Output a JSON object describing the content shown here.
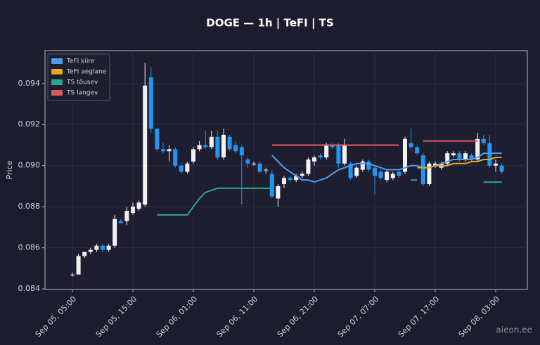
{
  "chart_data": {
    "type": "candlestick",
    "title": "DOGE — 1h  |  TeFI  |  TS",
    "y_label": "Price",
    "watermark": "aieon.ee",
    "up_color": "#f2f2f2",
    "down_color": "#2196f3",
    "grid": true,
    "legend": "upper left",
    "ylim": [
      0.08397,
      0.0956
    ],
    "yticks": [
      0.084,
      0.086,
      0.088,
      {
        "value": 0.09,
        "label": "0.090"
      },
      0.092,
      0.094
    ],
    "xticks": [
      "Sep 05, 05:00",
      "Sep 05, 15:00",
      "Sep 06, 01:00",
      "Sep 06, 11:00",
      "Sep 06, 21:00",
      "Sep 07, 07:00",
      "Sep 07, 17:00",
      "Sep 08, 03:00"
    ],
    "categories": [
      "Sep 05, 05:00",
      "Sep 05, 06:00",
      "Sep 05, 07:00",
      "Sep 05, 08:00",
      "Sep 05, 09:00",
      "Sep 05, 10:00",
      "Sep 05, 11:00",
      "Sep 05, 12:00",
      "Sep 05, 13:00",
      "Sep 05, 14:00",
      "Sep 05, 15:00",
      "Sep 05, 16:00",
      "Sep 05, 17:00",
      "Sep 05, 18:00",
      "Sep 05, 19:00",
      "Sep 05, 20:00",
      "Sep 05, 21:00",
      "Sep 05, 22:00",
      "Sep 05, 23:00",
      "Sep 06, 00:00",
      "Sep 06, 01:00",
      "Sep 06, 02:00",
      "Sep 06, 03:00",
      "Sep 06, 04:00",
      "Sep 06, 05:00",
      "Sep 06, 06:00",
      "Sep 06, 07:00",
      "Sep 06, 08:00",
      "Sep 06, 09:00",
      "Sep 06, 10:00",
      "Sep 06, 11:00",
      "Sep 06, 12:00",
      "Sep 06, 13:00",
      "Sep 06, 14:00",
      "Sep 06, 15:00",
      "Sep 06, 16:00",
      "Sep 06, 17:00",
      "Sep 06, 18:00",
      "Sep 06, 19:00",
      "Sep 06, 20:00",
      "Sep 06, 21:00",
      "Sep 06, 22:00",
      "Sep 06, 23:00",
      "Sep 07, 00:00",
      "Sep 07, 01:00",
      "Sep 07, 02:00",
      "Sep 07, 03:00",
      "Sep 07, 04:00",
      "Sep 07, 05:00",
      "Sep 07, 06:00",
      "Sep 07, 07:00",
      "Sep 07, 08:00",
      "Sep 07, 09:00",
      "Sep 07, 10:00",
      "Sep 07, 11:00",
      "Sep 07, 12:00",
      "Sep 07, 13:00",
      "Sep 07, 14:00",
      "Sep 07, 15:00",
      "Sep 07, 16:00",
      "Sep 07, 17:00",
      "Sep 07, 18:00",
      "Sep 07, 19:00",
      "Sep 07, 20:00",
      "Sep 07, 21:00",
      "Sep 07, 22:00",
      "Sep 07, 23:00",
      "Sep 08, 00:00",
      "Sep 08, 01:00",
      "Sep 08, 02:00",
      "Sep 08, 03:00",
      "Sep 08, 04:00"
    ],
    "open": [
      0.0847,
      0.0847,
      0.0856,
      0.0858,
      0.0859,
      0.0861,
      0.0859,
      0.0861,
      0.0873,
      0.0873,
      0.0877,
      0.0879,
      0.0881,
      0.0943,
      0.0918,
      0.0908,
      0.0907,
      0.0908,
      0.09,
      0.0897,
      0.0902,
      0.0908,
      0.091,
      0.0909,
      0.0914,
      0.0904,
      0.0914,
      0.091,
      0.0909,
      0.0903,
      0.0901,
      0.0901,
      0.0898,
      0.0896,
      0.0884,
      0.0891,
      0.0894,
      0.0893,
      0.0895,
      0.0896,
      0.0902,
      0.0905,
      0.0904,
      0.091,
      0.091,
      0.0901,
      0.0901,
      0.0895,
      0.0898,
      0.0902,
      0.0899,
      0.0897,
      0.0893,
      0.0894,
      0.0897,
      0.0897,
      0.0911,
      0.0909,
      0.0905,
      0.0891,
      0.09,
      0.0899,
      0.0901,
      0.0905,
      0.0906,
      0.0903,
      0.0905,
      0.0903,
      0.0913,
      0.0911,
      0.09,
      0.09
    ],
    "high": [
      0.0848,
      0.0857,
      0.0858,
      0.086,
      0.0862,
      0.0862,
      0.0862,
      0.0876,
      0.0874,
      0.088,
      0.0882,
      0.0883,
      0.095,
      0.0948,
      0.0918,
      0.0911,
      0.091,
      0.0909,
      0.0901,
      0.0902,
      0.0909,
      0.0912,
      0.0917,
      0.0917,
      0.0917,
      0.0918,
      0.0915,
      0.0912,
      0.091,
      0.0904,
      0.0902,
      0.0902,
      0.0899,
      0.0898,
      0.0891,
      0.0895,
      0.0895,
      0.0896,
      0.0897,
      0.0904,
      0.0905,
      0.0906,
      0.0911,
      0.0911,
      0.0911,
      0.0913,
      0.0902,
      0.09,
      0.0903,
      0.0903,
      0.09,
      0.0898,
      0.0898,
      0.0897,
      0.0898,
      0.0914,
      0.0918,
      0.091,
      0.0906,
      0.0902,
      0.0902,
      0.0902,
      0.0907,
      0.0907,
      0.0907,
      0.0907,
      0.0906,
      0.0916,
      0.0915,
      0.0915,
      0.0903,
      0.0901
    ],
    "low": [
      0.0846,
      0.0847,
      0.0855,
      0.0857,
      0.0858,
      0.0858,
      0.0858,
      0.086,
      0.0872,
      0.0871,
      0.0876,
      0.0878,
      0.088,
      0.0916,
      0.0907,
      0.0906,
      0.0902,
      0.0899,
      0.0896,
      0.0896,
      0.0901,
      0.0907,
      0.0908,
      0.0908,
      0.0903,
      0.0903,
      0.0907,
      0.0906,
      0.0881,
      0.0899,
      0.09,
      0.0896,
      0.0896,
      0.0884,
      0.088,
      0.0889,
      0.0892,
      0.0892,
      0.0894,
      0.0895,
      0.09,
      0.0903,
      0.0903,
      0.0908,
      0.0899,
      0.09,
      0.0893,
      0.0894,
      0.0897,
      0.0897,
      0.0886,
      0.0893,
      0.0892,
      0.0893,
      0.0894,
      0.0896,
      0.0908,
      0.0905,
      0.089,
      0.089,
      0.0899,
      0.0898,
      0.09,
      0.0904,
      0.0902,
      0.0902,
      0.0902,
      0.0902,
      0.091,
      0.0899,
      0.0897,
      0.0896
    ],
    "close": [
      0.0847,
      0.0856,
      0.0858,
      0.0859,
      0.0861,
      0.0859,
      0.0861,
      0.0874,
      0.0872,
      0.0878,
      0.088,
      0.0882,
      0.0939,
      0.0918,
      0.0908,
      0.0907,
      0.0908,
      0.09,
      0.0897,
      0.0901,
      0.0908,
      0.091,
      0.0909,
      0.0914,
      0.0904,
      0.0915,
      0.0908,
      0.0907,
      0.0905,
      0.0901,
      0.0901,
      0.0897,
      0.0898,
      0.0885,
      0.089,
      0.0894,
      0.0893,
      0.0895,
      0.0896,
      0.0903,
      0.0904,
      0.0904,
      0.091,
      0.0909,
      0.0901,
      0.091,
      0.0894,
      0.0899,
      0.0902,
      0.0898,
      0.0895,
      0.0894,
      0.0897,
      0.0896,
      0.0895,
      0.0913,
      0.0909,
      0.0906,
      0.0891,
      0.0901,
      0.0901,
      0.0901,
      0.0906,
      0.0906,
      0.0903,
      0.0906,
      0.0903,
      0.0913,
      0.0911,
      0.09,
      0.0901,
      0.0897
    ],
    "series": [
      {
        "name": "TeFI kiire",
        "color": "#4f9cf0",
        "values": [
          null,
          null,
          null,
          null,
          null,
          null,
          null,
          null,
          null,
          null,
          null,
          null,
          null,
          null,
          null,
          null,
          null,
          null,
          null,
          null,
          null,
          null,
          null,
          null,
          null,
          null,
          null,
          null,
          null,
          null,
          null,
          null,
          null,
          0.0905,
          0.0902,
          0.0899,
          0.0897,
          0.0895,
          0.0893,
          0.0893,
          0.0892,
          0.0893,
          0.0894,
          0.0896,
          0.0898,
          0.0899,
          0.09,
          0.0901,
          0.0901,
          0.0901,
          0.09,
          0.0899,
          0.0898,
          0.0898,
          0.0898,
          0.0899,
          0.09,
          0.09,
          0.0899,
          0.0899,
          0.09,
          0.0901,
          0.0902,
          0.0903,
          0.0903,
          0.0903,
          0.0903,
          0.0904,
          0.0906,
          0.0906,
          0.0906,
          0.0906
        ]
      },
      {
        "name": "TeFI aeglane",
        "color": "#e2a922",
        "values": [
          null,
          null,
          null,
          null,
          null,
          null,
          null,
          null,
          null,
          null,
          null,
          null,
          null,
          null,
          null,
          null,
          null,
          null,
          null,
          null,
          null,
          null,
          null,
          null,
          null,
          null,
          null,
          null,
          null,
          null,
          null,
          null,
          null,
          null,
          null,
          null,
          null,
          null,
          null,
          null,
          null,
          null,
          null,
          null,
          null,
          null,
          null,
          null,
          null,
          null,
          null,
          null,
          null,
          null,
          null,
          null,
          null,
          0.0899,
          0.0899,
          0.0899,
          0.09,
          0.09,
          0.09,
          0.0901,
          0.0901,
          0.0901,
          0.0902,
          0.0902,
          0.0903,
          0.0903,
          0.0904,
          0.0904
        ]
      },
      {
        "name": "TS tõusev",
        "color": "#2aa58e",
        "values": [
          null,
          null,
          null,
          null,
          null,
          null,
          null,
          null,
          null,
          null,
          null,
          null,
          null,
          null,
          0.0876,
          0.0876,
          0.0876,
          0.0876,
          0.0876,
          0.0876,
          0.088,
          0.0884,
          0.0887,
          0.0888,
          0.0889,
          0.0889,
          0.0889,
          0.0889,
          0.0889,
          0.0889,
          0.0889,
          0.0889,
          0.0889,
          0.0889,
          null,
          null,
          null,
          null,
          null,
          null,
          null,
          null,
          null,
          null,
          null,
          null,
          null,
          null,
          null,
          null,
          null,
          null,
          null,
          null,
          null,
          null,
          0.0893,
          0.0893,
          null,
          null,
          null,
          null,
          null,
          null,
          null,
          null,
          null,
          null,
          0.0892,
          0.0892,
          0.0892,
          0.0892
        ]
      },
      {
        "name": "TS langev",
        "color": "#e05a5a",
        "values": [
          null,
          null,
          null,
          null,
          null,
          null,
          null,
          null,
          null,
          null,
          null,
          null,
          null,
          null,
          null,
          null,
          null,
          null,
          null,
          null,
          null,
          null,
          null,
          null,
          null,
          null,
          null,
          null,
          null,
          null,
          null,
          null,
          null,
          0.091,
          0.091,
          0.091,
          0.091,
          0.091,
          0.091,
          0.091,
          0.091,
          0.091,
          0.091,
          0.091,
          0.091,
          0.091,
          0.091,
          0.091,
          0.091,
          0.091,
          0.091,
          0.091,
          0.091,
          0.091,
          0.091,
          null,
          null,
          null,
          0.0912,
          0.0912,
          0.0912,
          0.0912,
          0.0912,
          0.0912,
          0.0912,
          0.0912,
          0.0912,
          0.0912,
          null,
          null,
          null,
          null
        ]
      }
    ]
  }
}
